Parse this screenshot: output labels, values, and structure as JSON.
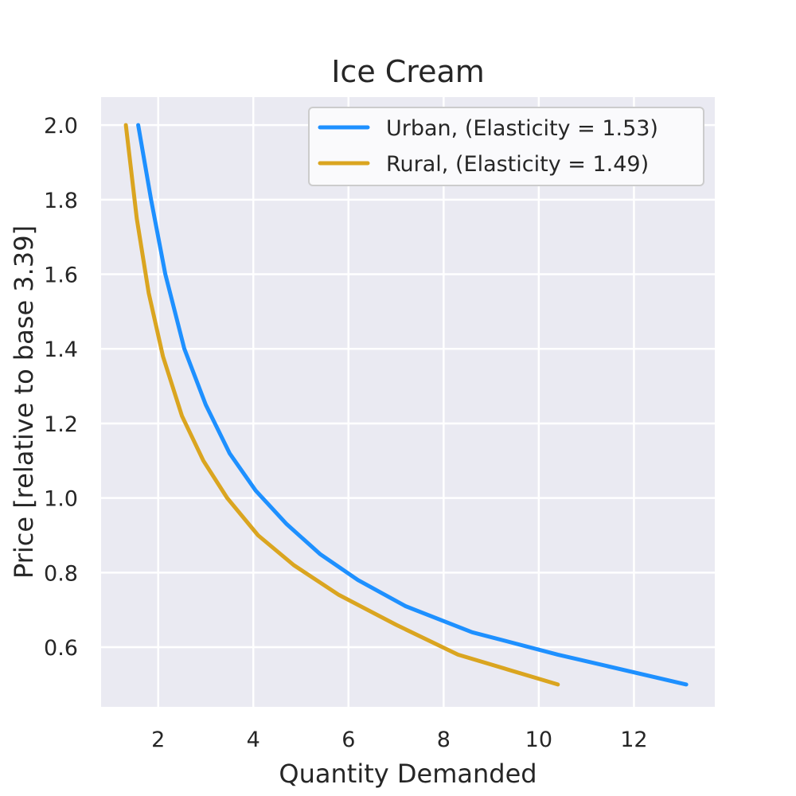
{
  "chart_data": {
    "type": "line",
    "title": "Ice Cream",
    "xlabel": "Quantity Demanded",
    "ylabel": "Price [relative to base 3.39]",
    "xlim": [
      0.8,
      13.7
    ],
    "ylim": [
      0.44,
      2.075
    ],
    "xticks": [
      2,
      4,
      6,
      8,
      10,
      12
    ],
    "yticks": [
      0.6,
      0.8,
      1.0,
      1.2,
      1.4,
      1.6,
      1.8,
      2.0
    ],
    "xtick_labels": [
      "2",
      "4",
      "6",
      "8",
      "10",
      "12"
    ],
    "ytick_labels": [
      "0.6",
      "0.8",
      "1.0",
      "1.2",
      "1.4",
      "1.6",
      "1.8",
      "2.0"
    ],
    "grid": true,
    "legend_position": "top-right",
    "series": [
      {
        "name": "Urban, (Elasticity = 1.53)",
        "color": "#1e90ff",
        "x": [
          1.58,
          1.85,
          2.15,
          2.55,
          3.0,
          3.5,
          4.05,
          4.7,
          5.4,
          6.2,
          7.2,
          8.6,
          10.4,
          13.1
        ],
        "y": [
          2.0,
          1.8,
          1.6,
          1.4,
          1.25,
          1.12,
          1.02,
          0.93,
          0.85,
          0.78,
          0.71,
          0.64,
          0.58,
          0.5
        ]
      },
      {
        "name": "Rural, (Elasticity = 1.49)",
        "color": "#daa520",
        "x": [
          1.32,
          1.55,
          1.8,
          2.1,
          2.5,
          2.95,
          3.45,
          4.1,
          4.85,
          5.8,
          7.0,
          8.3,
          10.4
        ],
        "y": [
          2.0,
          1.75,
          1.55,
          1.38,
          1.22,
          1.1,
          1.0,
          0.9,
          0.82,
          0.74,
          0.66,
          0.58,
          0.5
        ]
      }
    ]
  }
}
